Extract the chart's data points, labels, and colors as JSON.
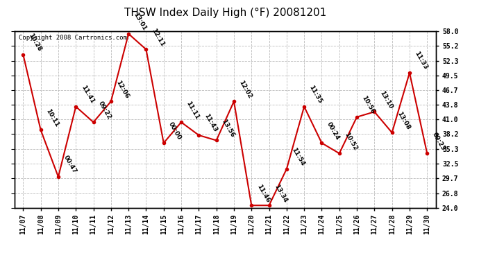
{
  "title": "THSW Index Daily High (°F) 20081201",
  "copyright": "Copyright 2008 Cartronics.com",
  "x_labels": [
    "11/07",
    "11/08",
    "11/09",
    "11/10",
    "11/11",
    "11/12",
    "11/13",
    "11/14",
    "11/15",
    "11/16",
    "11/17",
    "11/18",
    "11/19",
    "11/20",
    "11/21",
    "11/22",
    "11/23",
    "11/24",
    "11/25",
    "11/26",
    "11/27",
    "11/28",
    "11/29",
    "11/30"
  ],
  "y_values": [
    53.5,
    39.0,
    30.0,
    43.5,
    40.5,
    44.5,
    57.5,
    54.5,
    36.5,
    40.5,
    38.0,
    37.0,
    44.5,
    24.5,
    24.5,
    31.5,
    43.5,
    36.5,
    34.5,
    41.5,
    42.5,
    38.5,
    50.0,
    34.5
  ],
  "point_labels": [
    "10:28",
    "10:11",
    "00:47",
    "11:41",
    "09:22",
    "12:06",
    "13:01",
    "12:11",
    "00:00",
    "11:11",
    "11:43",
    "13:56",
    "12:02",
    "11:46",
    "13:34",
    "11:54",
    "11:35",
    "00:24",
    "10:52",
    "10:56",
    "13:10",
    "13:08",
    "11:33",
    "09:23"
  ],
  "ylim": [
    24.0,
    58.0
  ],
  "yticks": [
    24.0,
    26.8,
    29.7,
    32.5,
    35.3,
    38.2,
    41.0,
    43.8,
    46.7,
    49.5,
    52.3,
    55.2,
    58.0
  ],
  "line_color": "#cc0000",
  "marker_color": "#cc0000",
  "bg_color": "#ffffff",
  "grid_color": "#bbbbbb",
  "title_fontsize": 11,
  "tick_fontsize": 7,
  "annotation_fontsize": 6.5
}
